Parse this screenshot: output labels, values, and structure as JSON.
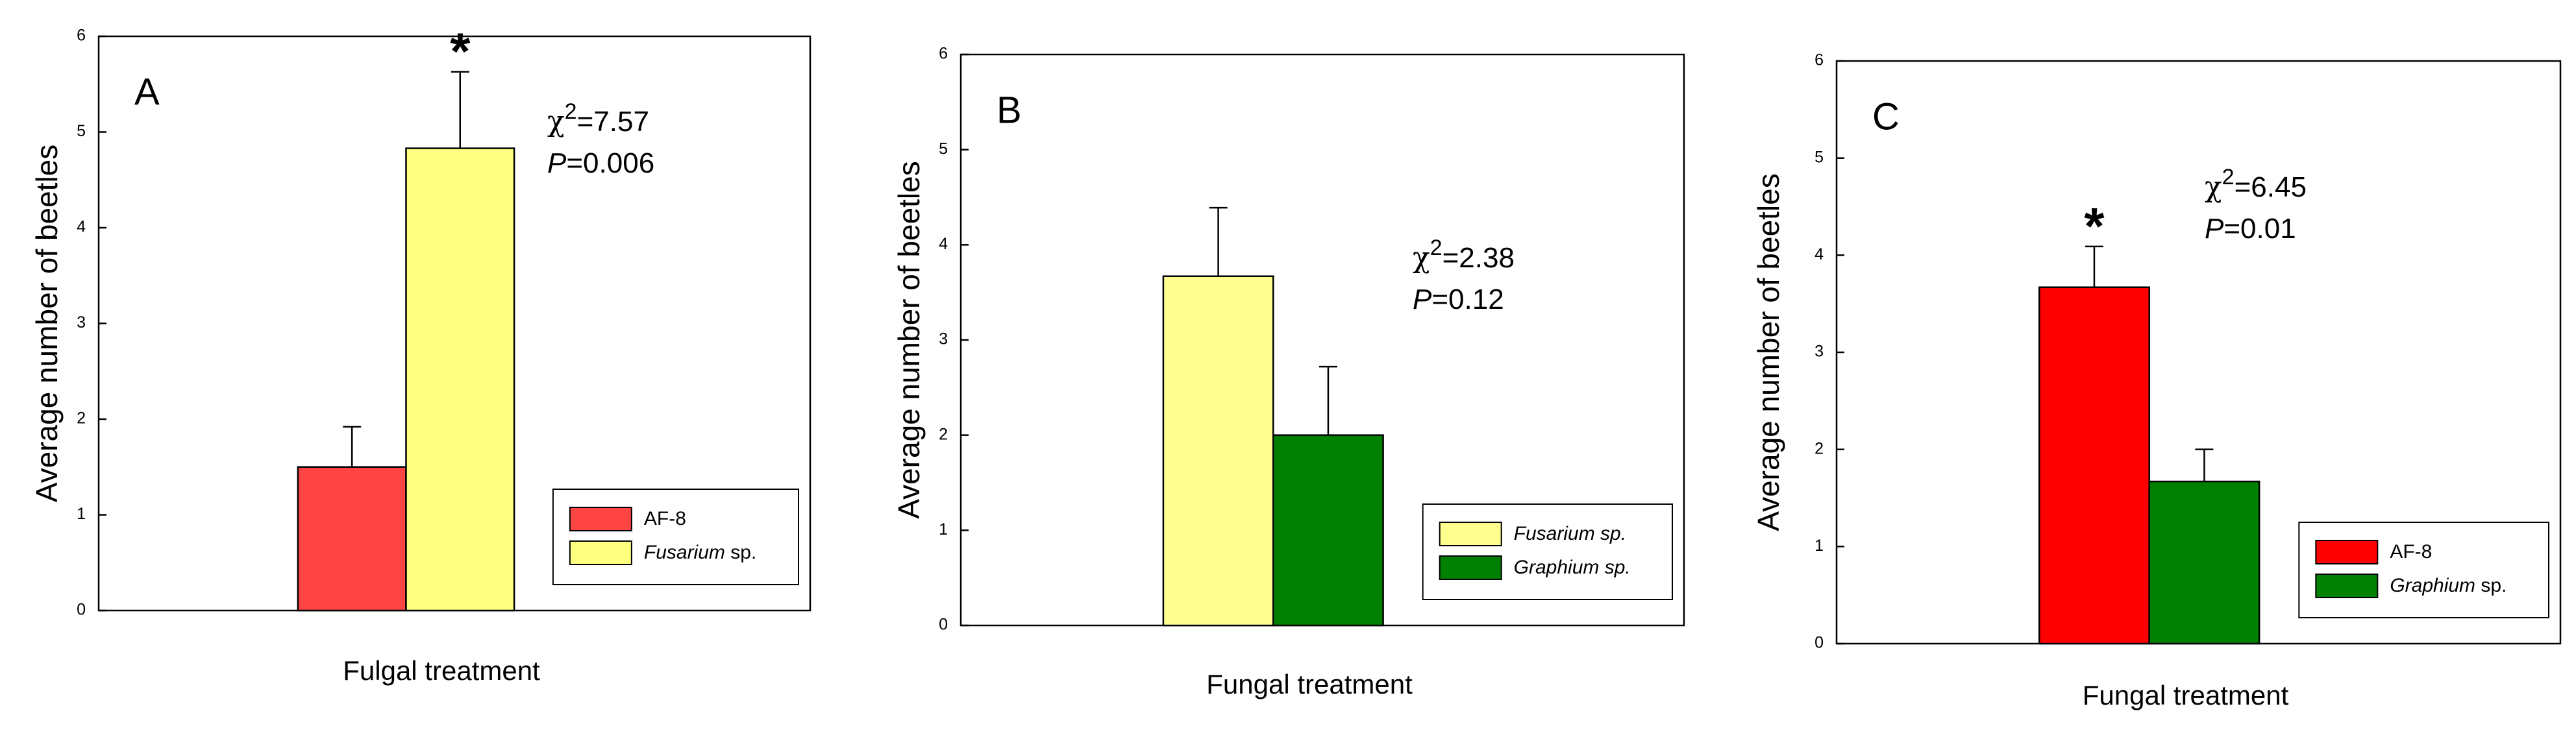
{
  "chart_data": [
    {
      "type": "bar",
      "panel": "A",
      "y_label": "Average number of beetles",
      "x_label": "Fulgal treatment",
      "ylim": [
        0,
        6
      ],
      "yticks": [
        0,
        1,
        2,
        3,
        4,
        5,
        6
      ],
      "legend": "lower right",
      "stats": [
        {
          "symbol": "χ",
          "sup": "2",
          "text": "=7.57"
        },
        {
          "symbol": "P",
          "text": "=0.006"
        }
      ],
      "series": [
        {
          "name": "AF-8",
          "color": "#ff4444",
          "values": [
            1.5
          ],
          "errors": [
            0.42
          ]
        },
        {
          "name": "Fusarium sp.",
          "color": "#ffff80",
          "values": [
            4.83
          ],
          "errors": [
            0.8
          ],
          "annotation": "*"
        }
      ]
    },
    {
      "type": "bar",
      "panel": "B",
      "y_label": "Average number of beetles",
      "x_label": "Fungal treatment",
      "ylim": [
        0,
        6
      ],
      "yticks": [
        0,
        1,
        2,
        3,
        4,
        5,
        6
      ],
      "legend": "lower right",
      "stats": [
        {
          "symbol": "χ",
          "sup": "2",
          "text": "=2.38"
        },
        {
          "symbol": "P",
          "text": "=0.12"
        }
      ],
      "series": [
        {
          "name": "Fusarium sp.",
          "color": "#ffff90",
          "values": [
            3.67
          ],
          "errors": [
            0.72
          ]
        },
        {
          "name": "Graphium sp.",
          "color": "#008000",
          "values": [
            2.0
          ],
          "errors": [
            0.72
          ]
        }
      ]
    },
    {
      "type": "bar",
      "panel": "C",
      "y_label": "Average number of beetles",
      "x_label": "Fungal treatment",
      "ylim": [
        0,
        6
      ],
      "yticks": [
        0,
        1,
        2,
        3,
        4,
        5,
        6
      ],
      "legend": "lower right",
      "stats": [
        {
          "symbol": "χ",
          "sup": "2",
          "text": "=6.45"
        },
        {
          "symbol": "P",
          "text": "=0.01"
        }
      ],
      "series": [
        {
          "name": "AF-8",
          "color": "#ff0000",
          "values": [
            3.67
          ],
          "errors": [
            0.42
          ],
          "annotation": "*"
        },
        {
          "name": "Graphium sp.",
          "color": "#008000",
          "values": [
            1.67
          ],
          "errors": [
            0.33
          ]
        }
      ]
    }
  ]
}
